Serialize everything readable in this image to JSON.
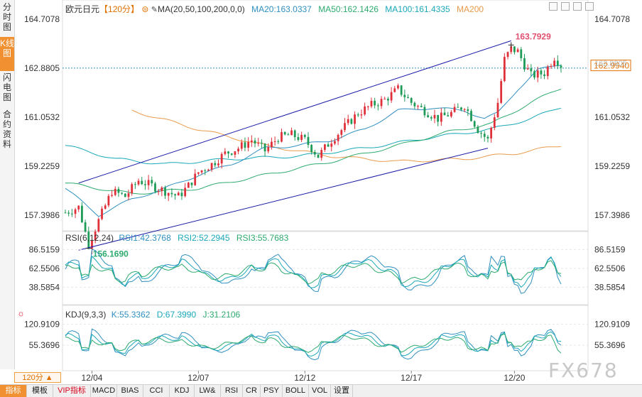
{
  "sidebar": {
    "tabs": [
      {
        "label": "分时图",
        "active": false
      },
      {
        "label": "K线图",
        "active": true
      },
      {
        "label": "闪电图",
        "active": false
      },
      {
        "label": "合约资料",
        "active": false
      }
    ]
  },
  "header": {
    "symbol": "欧元日元",
    "period_tag": "【120分】",
    "ma_label": "MA(20,50,100,200,0,0)",
    "ma20": "MA20:163.0337",
    "ma50": "MA50:162.1426",
    "ma100": "MA100:161.4335",
    "ma200": "MA200"
  },
  "rsi_header": {
    "label": "RSI(6,12,24)",
    "rsi1": "RSI1:42.3768",
    "rsi2": "RSI2:52.2945",
    "rsi3": "RSI3:55.7683"
  },
  "kdj_header": {
    "label": "KDJ(9,3,3)",
    "k": "K:55.3362",
    "d": "D:67.3990",
    "j": "J:31.2106"
  },
  "period_pill": "120分 ▲",
  "watermark": "FX678",
  "bottom_tabs": [
    {
      "label": "指标",
      "active": true
    },
    {
      "label": "模板"
    },
    {
      "label": "VIP指标",
      "vip": true
    },
    {
      "label": "MACD"
    },
    {
      "label": "BIAS"
    },
    {
      "label": "CCI"
    },
    {
      "label": "KDJ"
    },
    {
      "label": "LW&"
    },
    {
      "label": "RSI"
    },
    {
      "label": "CR"
    },
    {
      "label": "PSY"
    },
    {
      "label": "BOLL"
    },
    {
      "label": "VOL"
    },
    {
      "label": "设置"
    }
  ],
  "colors": {
    "up": "#e0303a",
    "down": "#1e9b57",
    "ma20": "#2f8fbf",
    "ma50": "#2eaa6e",
    "ma100": "#1aa8b8",
    "ma200": "#e89a4a",
    "channel": "#1a1aa8",
    "rsi1": "#2f8fbf",
    "rsi2": "#1aa8b8",
    "rsi3": "#2eaa6e",
    "k": "#2f8fbf",
    "d": "#1aa8b8",
    "j": "#2eaa6e",
    "highlight": "#e07000"
  },
  "chart_data": [
    {
      "type": "candlestick",
      "title": "欧元日元",
      "interval": "120分",
      "y_ticks": [
        164.7078,
        162.8805,
        161.0532,
        159.2259,
        157.3986
      ],
      "ylim": [
        156.9,
        165.1
      ],
      "x_tick_labels": [
        "12/04",
        "12/07",
        "12/12",
        "12/17",
        "12/20"
      ],
      "x_tick_index": [
        8,
        40,
        72,
        104,
        135
      ],
      "bars": 150,
      "last_price": 162.994,
      "dashed_price": 162.8805,
      "high_annotation": {
        "label": "163.7929",
        "value": 163.7929,
        "index": 134
      },
      "low_annotation": {
        "label": "156.1690",
        "value": 156.169,
        "index": 7
      },
      "anchors_close": [
        [
          0,
          157.5
        ],
        [
          4,
          157.7
        ],
        [
          7,
          156.3
        ],
        [
          10,
          157.2
        ],
        [
          14,
          158.3
        ],
        [
          18,
          158.1
        ],
        [
          22,
          158.7
        ],
        [
          26,
          158.5
        ],
        [
          30,
          158.3
        ],
        [
          34,
          158.1
        ],
        [
          37,
          158.5
        ],
        [
          40,
          159.0
        ],
        [
          44,
          159.3
        ],
        [
          48,
          159.7
        ],
        [
          52,
          159.9
        ],
        [
          56,
          160.2
        ],
        [
          60,
          159.8
        ],
        [
          64,
          160.3
        ],
        [
          68,
          160.4
        ],
        [
          72,
          160.2
        ],
        [
          76,
          159.6
        ],
        [
          80,
          160.2
        ],
        [
          84,
          160.7
        ],
        [
          88,
          161.2
        ],
        [
          92,
          161.5
        ],
        [
          96,
          161.7
        ],
        [
          100,
          162.1
        ],
        [
          104,
          161.6
        ],
        [
          108,
          161.3
        ],
        [
          112,
          161.0
        ],
        [
          116,
          161.2
        ],
        [
          120,
          161.5
        ],
        [
          124,
          160.6
        ],
        [
          127,
          160.2
        ],
        [
          130,
          161.6
        ],
        [
          132,
          163.2
        ],
        [
          134,
          163.6
        ],
        [
          136,
          163.5
        ],
        [
          138,
          163.0
        ],
        [
          140,
          162.6
        ],
        [
          144,
          162.7
        ],
        [
          147,
          163.3
        ],
        [
          149,
          162.99
        ]
      ],
      "ma20_anchors": [
        [
          0,
          158.4
        ],
        [
          10,
          157.4
        ],
        [
          20,
          158.0
        ],
        [
          30,
          158.4
        ],
        [
          40,
          158.9
        ],
        [
          50,
          159.3
        ],
        [
          60,
          159.9
        ],
        [
          70,
          160.0
        ],
        [
          80,
          160.2
        ],
        [
          90,
          160.6
        ],
        [
          100,
          161.3
        ],
        [
          110,
          161.4
        ],
        [
          120,
          161.3
        ],
        [
          126,
          161.0
        ],
        [
          130,
          161.2
        ],
        [
          136,
          162.1
        ],
        [
          142,
          162.8
        ],
        [
          149,
          163.0337
        ]
      ],
      "ma50_anchors": [
        [
          0,
          158.6
        ],
        [
          20,
          158.2
        ],
        [
          40,
          158.4
        ],
        [
          60,
          158.9
        ],
        [
          80,
          159.4
        ],
        [
          100,
          160.0
        ],
        [
          115,
          160.5
        ],
        [
          128,
          160.8
        ],
        [
          140,
          161.6
        ],
        [
          149,
          162.1426
        ]
      ],
      "ma100_anchors": [
        [
          0,
          160.0
        ],
        [
          15,
          159.5
        ],
        [
          30,
          159.3
        ],
        [
          50,
          159.5
        ],
        [
          70,
          159.6
        ],
        [
          90,
          159.9
        ],
        [
          110,
          160.3
        ],
        [
          128,
          160.6
        ],
        [
          140,
          161.0
        ],
        [
          149,
          161.4335
        ]
      ],
      "ma200_anchors": [
        [
          20,
          161.3
        ],
        [
          40,
          160.6
        ],
        [
          60,
          160.0
        ],
        [
          80,
          159.6
        ],
        [
          100,
          159.4
        ],
        [
          120,
          159.5
        ],
        [
          135,
          159.7
        ],
        [
          149,
          160.0
        ]
      ],
      "channel_upper": [
        [
          4,
          158.6
        ],
        [
          134,
          163.9
        ]
      ],
      "channel_lower": [
        [
          4,
          156.1
        ],
        [
          127,
          159.9
        ]
      ]
    },
    {
      "type": "line",
      "title": "RSI(6,12,24)",
      "y_ticks": [
        86.5159,
        62.5506,
        38.5854
      ],
      "ylim": [
        20,
        95
      ],
      "series": [
        {
          "name": "RSI1",
          "last": 42.3768
        },
        {
          "name": "RSI2",
          "last": 52.2945
        },
        {
          "name": "RSI3",
          "last": 55.7683
        }
      ]
    },
    {
      "type": "line",
      "title": "KDJ(9,3,3)",
      "y_ticks": [
        120.9109,
        55.3696
      ],
      "ylim": [
        -15,
        135
      ],
      "series": [
        {
          "name": "K",
          "last": 55.3362
        },
        {
          "name": "D",
          "last": 67.399
        },
        {
          "name": "J",
          "last": 31.2106
        }
      ]
    }
  ]
}
